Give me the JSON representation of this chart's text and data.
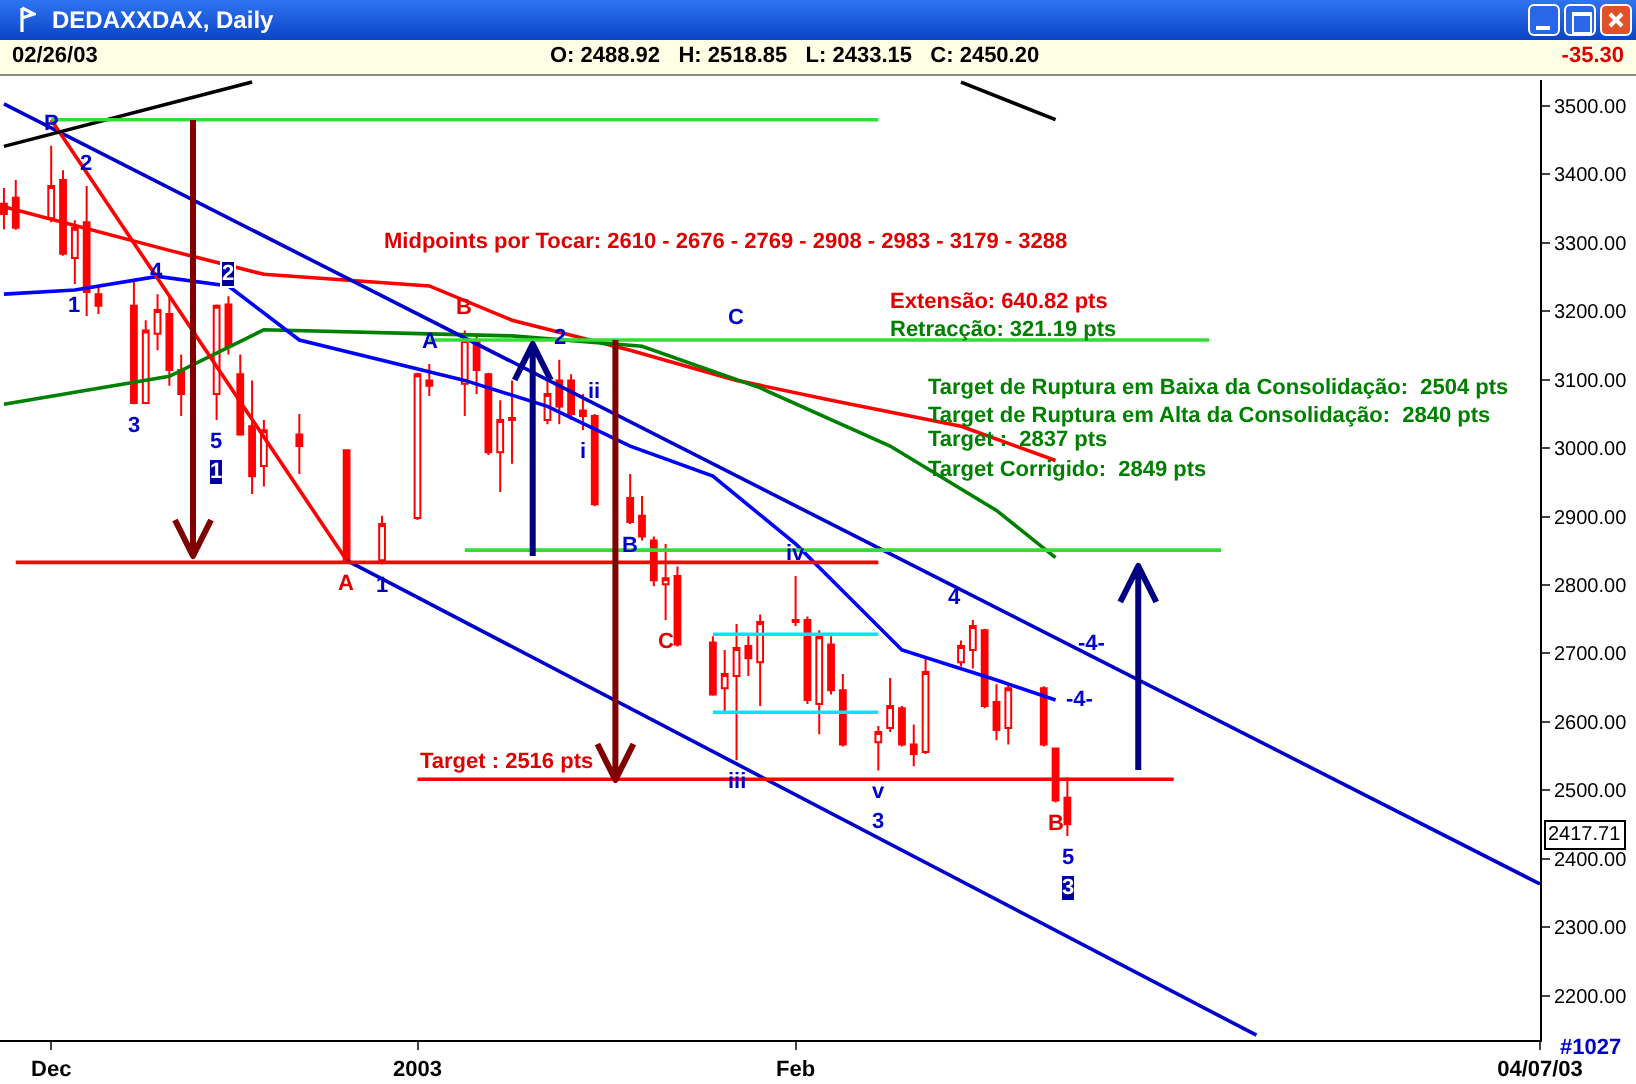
{
  "chart_data": {
    "type": "candlestick",
    "title": "DEDAXXDAX, Daily",
    "subtitle": "O: 2488.92   H: 2518.85   L: 2433.15   C: 2450.20",
    "color": "#ff0000",
    "x": [
      "2002-11-28",
      "2002-11-29",
      "2002-12-02",
      "2002-12-03",
      "2002-12-04",
      "2002-12-05",
      "2002-12-06",
      "2002-12-09",
      "2002-12-10",
      "2002-12-11",
      "2002-12-12",
      "2002-12-13",
      "2002-12-16",
      "2002-12-17",
      "2002-12-18",
      "2002-12-19",
      "2002-12-20",
      "2002-12-23",
      "2002-12-27",
      "2002-12-30",
      "2003-01-02",
      "2003-01-03",
      "2003-01-06",
      "2003-01-07",
      "2003-01-08",
      "2003-01-09",
      "2003-01-10",
      "2003-01-13",
      "2003-01-14",
      "2003-01-15",
      "2003-01-16",
      "2003-01-17",
      "2003-01-20",
      "2003-01-21",
      "2003-01-22",
      "2003-01-23",
      "2003-01-24",
      "2003-01-27",
      "2003-01-28",
      "2003-01-29",
      "2003-01-30",
      "2003-01-31",
      "2003-02-03",
      "2003-02-04",
      "2003-02-05",
      "2003-02-06",
      "2003-02-07",
      "2003-02-10",
      "2003-02-11",
      "2003-02-12",
      "2003-02-13",
      "2003-02-14",
      "2003-02-17",
      "2003-02-18",
      "2003-02-19",
      "2003-02-20",
      "2003-02-21",
      "2003-02-24",
      "2003-02-25",
      "2003-02-26"
    ],
    "ohlc": [
      [
        3357,
        3380,
        3320,
        3342
      ],
      [
        3366,
        3392,
        3319,
        3322
      ],
      [
        3336,
        3442,
        3330,
        3383
      ],
      [
        3392,
        3406,
        3281,
        3284
      ],
      [
        3278,
        3333,
        3240,
        3322
      ],
      [
        3330,
        3383,
        3193,
        3228
      ],
      [
        3225,
        3237,
        3196,
        3208
      ],
      [
        3208,
        3246,
        3064,
        3066
      ],
      [
        3066,
        3187,
        3064,
        3172
      ],
      [
        3167,
        3225,
        3143,
        3202
      ],
      [
        3196,
        3225,
        3091,
        3114
      ],
      [
        3114,
        3137,
        3047,
        3079
      ],
      [
        3079,
        3210,
        3041,
        3208
      ],
      [
        3210,
        3222,
        3137,
        3149
      ],
      [
        3108,
        3137,
        3018,
        3020
      ],
      [
        3032,
        3099,
        2933,
        2959
      ],
      [
        2974,
        3041,
        2944,
        3026
      ],
      [
        3020,
        3050,
        2962,
        3003
      ],
      [
        2997,
        2998,
        2834,
        2836
      ],
      [
        2836,
        2901,
        2830,
        2889
      ],
      [
        2898,
        3110,
        2895,
        3108
      ],
      [
        3099,
        3123,
        3076,
        3091
      ],
      [
        3094,
        3172,
        3047,
        3158
      ],
      [
        3158,
        3167,
        3079,
        3114
      ],
      [
        3108,
        3110,
        2990,
        2994
      ],
      [
        2994,
        3070,
        2936,
        3041
      ],
      [
        3041,
        3099,
        2977,
        3044
      ],
      [
        3041,
        3099,
        3035,
        3079
      ],
      [
        3099,
        3129,
        3035,
        3061
      ],
      [
        3099,
        3108,
        3041,
        3050
      ],
      [
        3055,
        3079,
        3026,
        3047
      ],
      [
        3047,
        3050,
        2915,
        2918
      ],
      [
        2927,
        2962,
        2889,
        2892
      ],
      [
        2901,
        2930,
        2865,
        2871
      ],
      [
        2865,
        2871,
        2798,
        2807
      ],
      [
        2801,
        2860,
        2749,
        2810
      ],
      [
        2813,
        2827,
        2710,
        2713
      ],
      [
        2716,
        2725,
        2638,
        2640
      ],
      [
        2649,
        2705,
        2611,
        2670
      ],
      [
        2667,
        2743,
        2544,
        2708
      ],
      [
        2711,
        2725,
        2667,
        2693
      ],
      [
        2687,
        2757,
        2623,
        2746
      ],
      [
        2749,
        2813,
        2740,
        2746
      ],
      [
        2749,
        2754,
        2626,
        2632
      ],
      [
        2626,
        2734,
        2582,
        2725
      ],
      [
        2713,
        2725,
        2640,
        2646
      ],
      [
        2646,
        2670,
        2564,
        2567
      ],
      [
        2570,
        2594,
        2529,
        2585
      ],
      [
        2591,
        2664,
        2585,
        2623
      ],
      [
        2620,
        2623,
        2564,
        2567
      ],
      [
        2567,
        2596,
        2535,
        2553
      ],
      [
        2556,
        2696,
        2553,
        2673
      ],
      [
        2687,
        2719,
        2681,
        2711
      ],
      [
        2705,
        2749,
        2678,
        2740
      ],
      [
        2734,
        2736,
        2620,
        2623
      ],
      [
        2629,
        2655,
        2573,
        2588
      ],
      [
        2591,
        2655,
        2567,
        2649
      ],
      [
        2649,
        2652,
        2564,
        2567
      ],
      [
        2561,
        2562,
        2482,
        2485
      ],
      [
        2488.92,
        2518.85,
        2433.15,
        2450.2
      ]
    ],
    "series": [
      {
        "type": "line",
        "color": "#ff0000",
        "x": [
          "2002-11-27T18:00",
          "2002-12-12",
          "2002-12-20",
          "2003-01-03",
          "2003-01-10",
          "2003-01-20",
          "2003-01-29",
          "2003-02-06",
          "2003-02-17",
          "2003-02-25"
        ],
        "values": [
          3354,
          3289,
          3254,
          3237,
          3187,
          3143,
          3099,
          3070,
          3032,
          2982
        ]
      },
      {
        "type": "line",
        "color": "#008000",
        "x": [
          "2002-11-28",
          "2002-12-12",
          "2002-12-20",
          "2003-01-03",
          "2003-01-10",
          "2003-01-21",
          "2003-01-31",
          "2003-02-11",
          "2003-02-20",
          "2003-02-25"
        ],
        "values": [
          3064,
          3105,
          3173,
          3167,
          3164,
          3149,
          3088,
          3003,
          2909,
          2840
        ]
      },
      {
        "type": "line",
        "color": "#0000ff",
        "x": [
          "2002-11-28",
          "2002-12-04",
          "2002-12-11",
          "2002-12-17",
          "2002-12-23",
          "2003-01-06",
          "2003-01-13",
          "2003-01-20",
          "2003-01-27",
          "2003-02-03",
          "2003-02-12",
          "2003-02-20",
          "2003-02-25"
        ],
        "values": [
          3225,
          3231,
          3251,
          3237,
          3158,
          3099,
          3061,
          3003,
          2959,
          2860,
          2705,
          2661,
          2632
        ]
      },
      {
        "type": "line",
        "color": "#0000cc",
        "x": [
          "2002-11-28",
          "2003-02-26",
          "2003-04-07"
        ],
        "values": [
          3503,
          2714,
          2363
        ]
      },
      {
        "type": "line",
        "color": "#0000cc",
        "x": [
          "2002-12-27",
          "2003-03-14"
        ],
        "values": [
          2836,
          2142
        ]
      },
      {
        "type": "line",
        "color": "#ff0000",
        "x": [
          "2002-12-02",
          "2002-12-27"
        ],
        "values": [
          3480,
          2836
        ]
      },
      {
        "type": "line",
        "color": "#000000",
        "x": [
          "2002-11-28",
          "2002-12-19"
        ],
        "values": [
          3441,
          3535
        ]
      },
      {
        "type": "line",
        "color": "#000000",
        "x": [
          "2003-02-17",
          "2003-02-25"
        ],
        "values": [
          3535,
          3480
        ]
      },
      {
        "type": "line",
        "color": "#33dd33",
        "x": [
          "2002-12-02",
          "2003-02-10"
        ],
        "values": [
          3480,
          3480
        ]
      },
      {
        "type": "line",
        "color": "#33dd33",
        "x": [
          "2003-01-03",
          "2003-03-10"
        ],
        "values": [
          3158,
          3158
        ]
      },
      {
        "type": "line",
        "color": "#33dd33",
        "x": [
          "2003-01-06",
          "2003-03-11"
        ],
        "values": [
          2851,
          2851
        ]
      },
      {
        "type": "line",
        "color": "#ff0000",
        "x": [
          "2002-11-29",
          "2003-02-10"
        ],
        "values": [
          2833,
          2833
        ]
      },
      {
        "type": "line",
        "color": "#ff0000",
        "x": [
          "2003-01-02",
          "2003-03-07"
        ],
        "values": [
          2516,
          2516
        ]
      },
      {
        "type": "line",
        "color": "#00e5ff",
        "x": [
          "2003-01-27",
          "2003-02-10"
        ],
        "values": [
          2728,
          2728
        ]
      },
      {
        "type": "line",
        "color": "#00e5ff",
        "x": [
          "2003-01-27",
          "2003-02-10"
        ],
        "values": [
          2614,
          2614
        ]
      }
    ],
    "xlim": [
      "2002-11-27T16:00",
      "2003-04-07"
    ],
    "xticks": [
      {
        "value": "2002-12-02",
        "label": "Dec"
      },
      {
        "value": "2003-01-02",
        "label": "2003"
      },
      {
        "value": "2003-02-03",
        "label": "Feb"
      },
      {
        "value": "2003-04-07",
        "label": "04/07/03"
      }
    ],
    "ylim": [
      2135,
      3538
    ],
    "yticks": [
      {
        "value": 2200,
        "label": "2200.00"
      },
      {
        "value": 2300,
        "label": "2300.00"
      },
      {
        "value": 2400,
        "label": "2400.00"
      },
      {
        "value": 2500,
        "label": "2500.00"
      },
      {
        "value": 2600,
        "label": "2600.00"
      },
      {
        "value": 2700,
        "label": "2700.00"
      },
      {
        "value": 2800,
        "label": "2800.00"
      },
      {
        "value": 2900,
        "label": "2900.00"
      },
      {
        "value": 3000,
        "label": "3000.00"
      },
      {
        "value": 3100,
        "label": "3100.00"
      },
      {
        "value": 3200,
        "label": "3200.00"
      },
      {
        "value": 3300,
        "label": "3300.00"
      },
      {
        "value": 3400,
        "label": "3400.00"
      },
      {
        "value": 3500,
        "label": "3500.00"
      }
    ],
    "annotations": [
      "02/26/03",
      "-35.30",
      "Midpoints por Tocar: 2610 - 2676 - 2769 - 2908 - 2983 - 3179 - 3288",
      "Extensão: 640.82 pts",
      "Retracção: 321.19 pts",
      "Target de Ruptura em Baixa da Consolidação:  2504 pts",
      "Target de Ruptura em Alta da Consolidação:  2840 pts",
      "Target :  2837 pts",
      "Target Corrigido:  2849 pts",
      {
        "text": "Target : 2516 pts",
        "x": "2003-01-02",
        "y": 2516
      },
      "2417.71",
      "#1027",
      {
        "text": "P",
        "x": "2002-12-02",
        "y": 3442
      },
      {
        "text": "2",
        "x": "2002-12-05",
        "y": 3383
      },
      {
        "text": "1",
        "x": "2002-12-04",
        "y": 3240
      },
      {
        "text": "3",
        "x": "2002-12-09",
        "y": 3064
      },
      {
        "text": "4",
        "x": "2002-12-11",
        "y": 3225
      },
      {
        "text": "5",
        "x": "2002-12-16",
        "y": 3041
      },
      {
        "text": "1",
        "x": "2002-12-16",
        "y": 3041
      },
      {
        "text": "2",
        "x": "2002-12-17",
        "y": 3222
      },
      {
        "text": "A",
        "x": "2002-12-27",
        "y": 2834
      },
      {
        "text": "1",
        "x": "2002-12-30",
        "y": 2830
      },
      {
        "text": "A",
        "x": "2003-01-03",
        "y": 3123
      },
      {
        "text": "B",
        "x": "2003-01-06",
        "y": 3172
      },
      {
        "text": "2",
        "x": "2003-01-14",
        "y": 3129
      },
      {
        "text": "i",
        "x": "2003-01-16",
        "y": 3026
      },
      {
        "text": "ii",
        "x": "2003-01-17",
        "y": 3050
      },
      {
        "text": "C",
        "x": "2003-01-29",
        "y": 3158
      },
      {
        "text": "B",
        "x": "2003-01-20",
        "y": 2889
      },
      {
        "text": "C",
        "x": "2003-01-23",
        "y": 2749
      },
      {
        "text": "iv",
        "x": "2003-02-03",
        "y": 2813
      },
      {
        "text": "iii",
        "x": "2003-01-29",
        "y": 2544
      },
      {
        "text": "v",
        "x": "2003-02-10",
        "y": 2529
      },
      {
        "text": "3",
        "x": "2003-02-10",
        "y": 2529
      },
      {
        "text": "4",
        "x": "2003-02-18",
        "y": 2749
      },
      {
        "text": "-4-",
        "x": "2003-02-26",
        "y": 2714
      },
      {
        "text": "-4-",
        "x": "2003-02-25",
        "y": 2632
      },
      {
        "text": "B",
        "x": "2003-02-25",
        "y": 2482
      },
      {
        "text": "5",
        "x": "2003-02-26",
        "y": 2433.15
      },
      {
        "text": "3",
        "x": "2003-02-26",
        "y": 2433.15
      }
    ]
  }
}
